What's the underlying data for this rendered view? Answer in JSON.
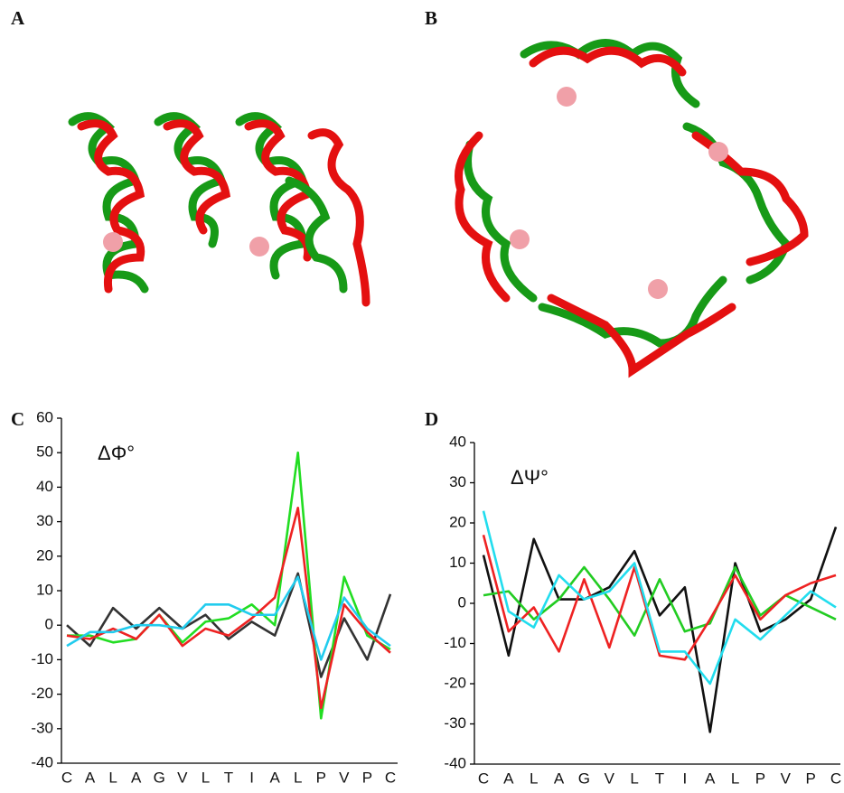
{
  "panel_labels": [
    "A",
    "B",
    "C",
    "D"
  ],
  "chart_data": [
    {
      "type": "line",
      "annotation": "ΔΦ°",
      "categories": [
        "C",
        "A",
        "L",
        "A",
        "G",
        "V",
        "L",
        "T",
        "I",
        "A",
        "L",
        "P",
        "V",
        "P",
        "C"
      ],
      "ylim": [
        -40,
        60
      ],
      "yticks": [
        -40,
        -30,
        -20,
        -10,
        0,
        10,
        20,
        30,
        40,
        50,
        60
      ],
      "series": [
        {
          "color": "#333333",
          "values": [
            0,
            -6,
            5,
            -1,
            5,
            -1,
            3,
            -4,
            1,
            -3,
            15,
            -15,
            2,
            -10,
            9
          ]
        },
        {
          "color": "#22dd22",
          "values": [
            -3,
            -3,
            -5,
            -4,
            3,
            -5,
            1,
            2,
            6,
            0,
            50,
            -27,
            14,
            -3,
            -7
          ]
        },
        {
          "color": "#ee2222",
          "values": [
            -3,
            -4,
            -1,
            -4,
            3,
            -6,
            -1,
            -3,
            2,
            8,
            34,
            -24,
            6,
            -2,
            -8
          ]
        },
        {
          "color": "#22ccee",
          "values": [
            -6,
            -2,
            -2,
            0,
            0,
            -1,
            6,
            6,
            3,
            3,
            14,
            -10,
            8,
            -1,
            -6
          ]
        }
      ]
    },
    {
      "type": "line",
      "annotation": "ΔΨ°",
      "categories": [
        "C",
        "A",
        "L",
        "A",
        "G",
        "V",
        "L",
        "T",
        "I",
        "A",
        "L",
        "P",
        "V",
        "P",
        "C"
      ],
      "ylim": [
        -40,
        40
      ],
      "yticks": [
        -40,
        -30,
        -20,
        -10,
        0,
        10,
        20,
        30,
        40
      ],
      "series": [
        {
          "color": "#111111",
          "values": [
            12,
            -13,
            16,
            1,
            1,
            4,
            13,
            -3,
            4,
            -32,
            10,
            -7,
            -4,
            1,
            19
          ]
        },
        {
          "color": "#22cc22",
          "values": [
            2,
            3,
            -4,
            1,
            9,
            1,
            -8,
            6,
            -7,
            -5,
            9,
            -3,
            2,
            -1,
            -4
          ]
        },
        {
          "color": "#ee2222",
          "values": [
            17,
            -7,
            -1,
            -12,
            6,
            -11,
            9,
            -13,
            -14,
            -4,
            7,
            -4,
            2,
            5,
            7
          ]
        },
        {
          "color": "#22ddee",
          "values": [
            23,
            -2,
            -6,
            7,
            1,
            3,
            10,
            -12,
            -12,
            -20,
            -4,
            -9,
            -3,
            3,
            -1
          ]
        }
      ]
    }
  ]
}
